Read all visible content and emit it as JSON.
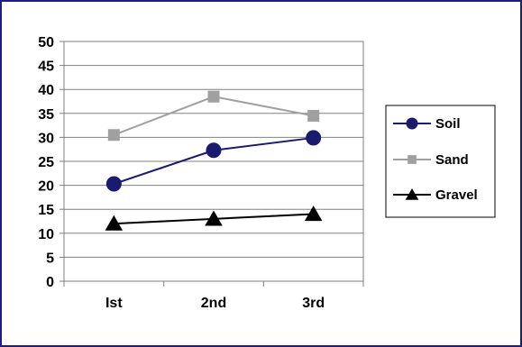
{
  "chart_data": {
    "type": "line",
    "categories": [
      "Ist",
      "2nd",
      "3rd"
    ],
    "ylim": [
      0,
      50
    ],
    "yticks": [
      0,
      5,
      10,
      15,
      20,
      25,
      30,
      35,
      40,
      45,
      50
    ],
    "grid": true,
    "legend": "right",
    "series": [
      {
        "name": "Soil",
        "values": [
          20.3,
          27.3,
          29.9
        ],
        "color": "#1a1a6e",
        "marker": "circle"
      },
      {
        "name": "Sand",
        "values": [
          30.5,
          38.5,
          34.5
        ],
        "color": "#a0a0a0",
        "marker": "square"
      },
      {
        "name": "Gravel",
        "values": [
          12,
          13,
          14
        ],
        "color": "#000000",
        "marker": "triangle"
      }
    ]
  }
}
